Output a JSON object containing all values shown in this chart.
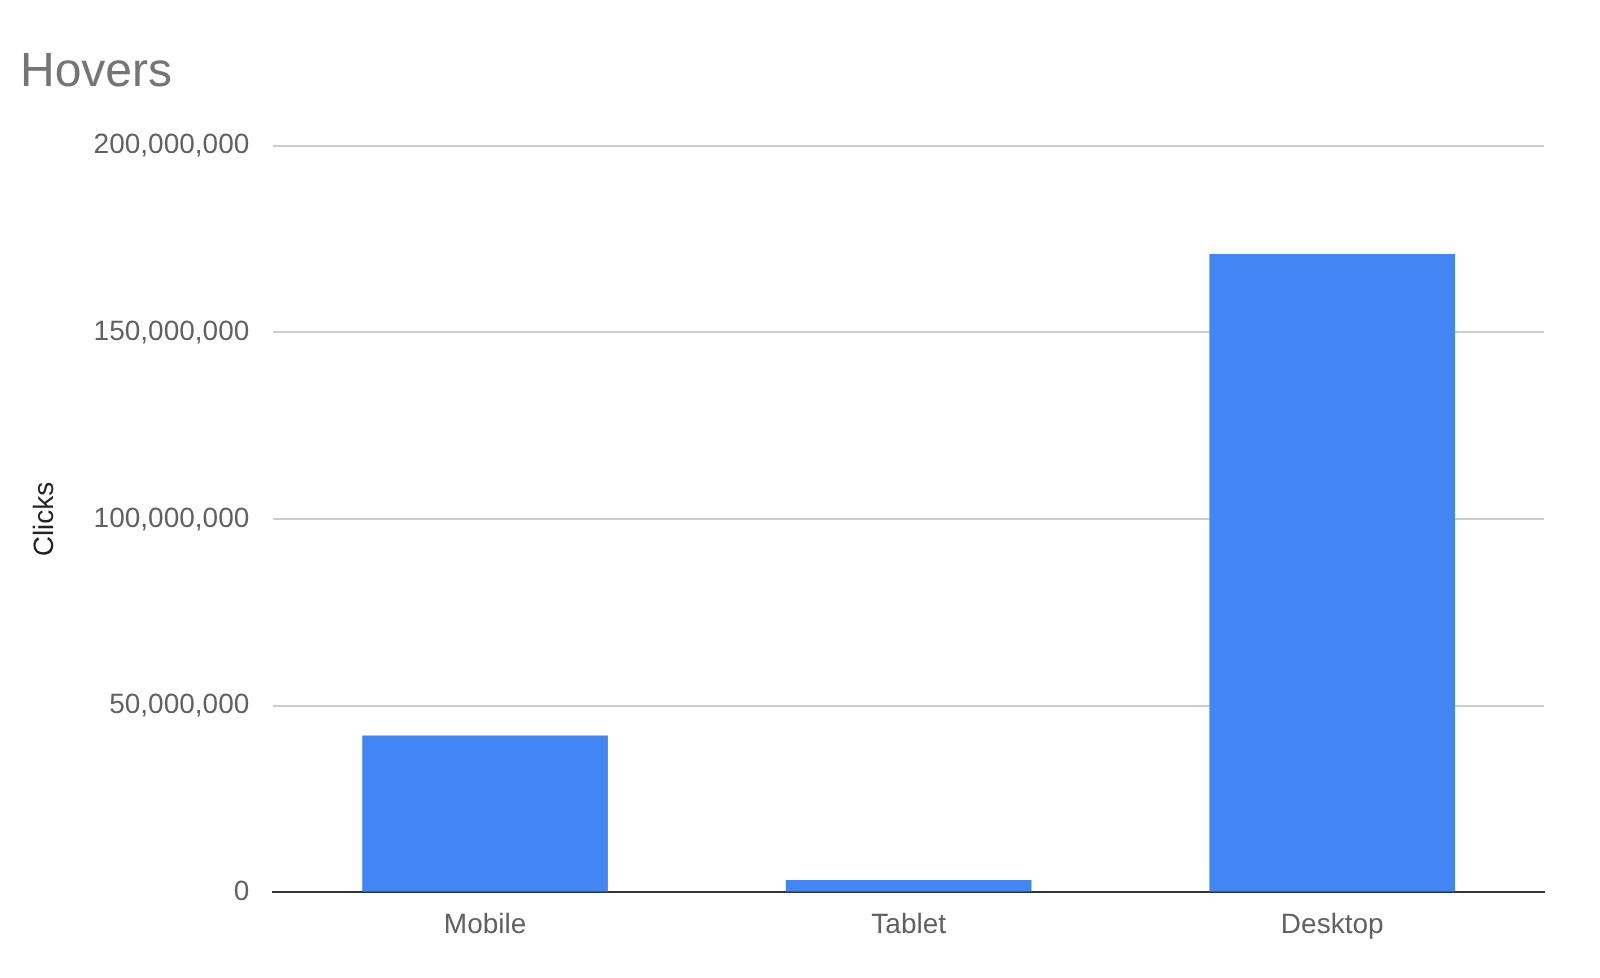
{
  "chart_data": {
    "type": "bar",
    "title": "Hovers",
    "ylabel": "Clicks",
    "categories": [
      "Mobile",
      "Tablet",
      "Desktop"
    ],
    "values": [
      42000000,
      3300000,
      171000000
    ],
    "color": "#4285f4",
    "ylim": [
      0,
      200000000
    ],
    "yticks": [
      0,
      {
        "value": 50000000,
        "label": "50,000,000"
      },
      {
        "value": 100000000,
        "label": "100,000,000"
      },
      {
        "value": 150000000,
        "label": "150,000,000"
      },
      {
        "value": 200000000,
        "label": "200,000,000"
      }
    ],
    "grid": "y",
    "legend": false
  }
}
